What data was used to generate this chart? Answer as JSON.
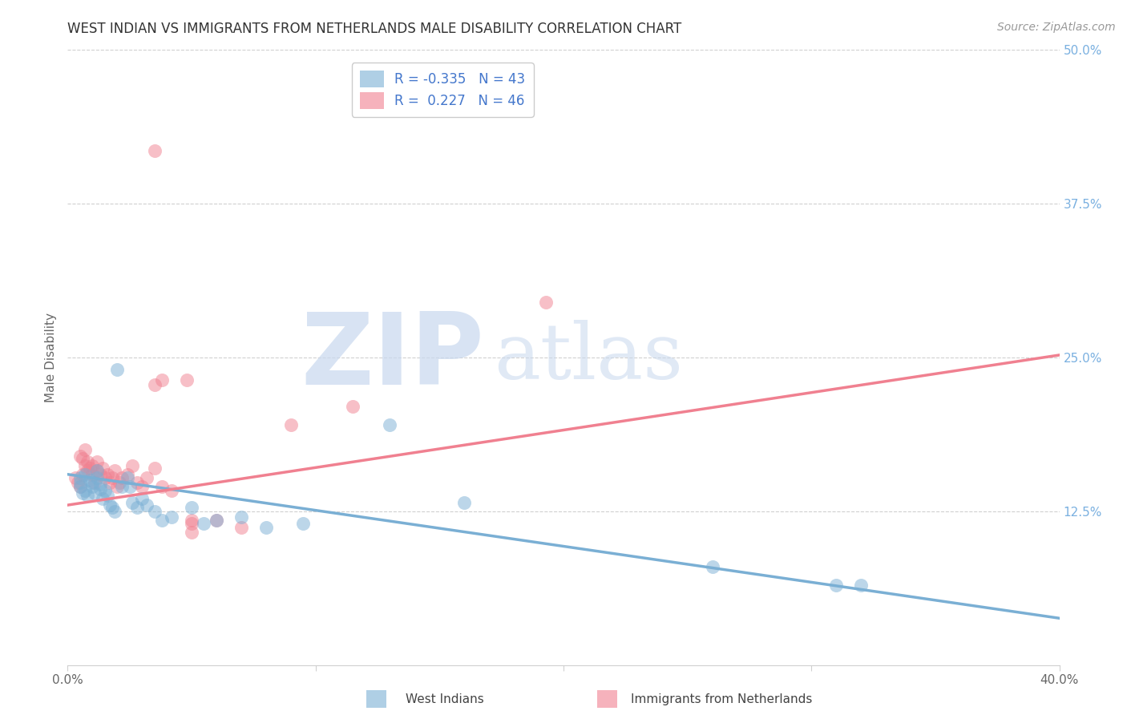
{
  "title": "WEST INDIAN VS IMMIGRANTS FROM NETHERLANDS MALE DISABILITY CORRELATION CHART",
  "source": "Source: ZipAtlas.com",
  "ylabel": "Male Disability",
  "xlim": [
    0.0,
    0.4
  ],
  "ylim": [
    0.0,
    0.5
  ],
  "yticks": [
    0.125,
    0.25,
    0.375,
    0.5
  ],
  "ytick_labels": [
    "12.5%",
    "25.0%",
    "37.5%",
    "50.0%"
  ],
  "xticks": [
    0.0,
    0.1,
    0.2,
    0.3,
    0.4
  ],
  "xtick_labels": [
    "0.0%",
    "",
    "",
    "",
    "40.0%"
  ],
  "watermark_zip": "ZIP",
  "watermark_atlas": "atlas",
  "series1_color": "#7aafd4",
  "series2_color": "#f08090",
  "series1_name": "West Indians",
  "series2_name": "Immigrants from Netherlands",
  "background_color": "#ffffff",
  "grid_color": "#d0d0d0",
  "title_color": "#333333",
  "right_tick_color": "#7ab0e0",
  "legend_text_color": "#4477cc",
  "legend_R1": "R = -0.335",
  "legend_N1": "N = 43",
  "legend_R2": "R =  0.227",
  "legend_N2": "N = 46",
  "blue_line_x0": 0.0,
  "blue_line_y0": 0.155,
  "blue_line_x1": 0.4,
  "blue_line_y1": 0.038,
  "pink_line_x0": 0.0,
  "pink_line_y0": 0.13,
  "pink_line_x1": 0.4,
  "pink_line_y1": 0.252,
  "seed1": 42,
  "seed2": 99,
  "blue_x": [
    0.005,
    0.005,
    0.005,
    0.006,
    0.007,
    0.007,
    0.008,
    0.009,
    0.01,
    0.01,
    0.011,
    0.012,
    0.012,
    0.013,
    0.013,
    0.014,
    0.015,
    0.016,
    0.017,
    0.018,
    0.019,
    0.02,
    0.022,
    0.024,
    0.025,
    0.026,
    0.028,
    0.03,
    0.032,
    0.035,
    0.038,
    0.042,
    0.05,
    0.055,
    0.06,
    0.07,
    0.08,
    0.095,
    0.13,
    0.16,
    0.26,
    0.31,
    0.32
  ],
  "blue_y": [
    0.145,
    0.148,
    0.152,
    0.14,
    0.142,
    0.155,
    0.138,
    0.15,
    0.145,
    0.148,
    0.14,
    0.152,
    0.158,
    0.143,
    0.147,
    0.135,
    0.142,
    0.138,
    0.13,
    0.128,
    0.125,
    0.24,
    0.145,
    0.152,
    0.145,
    0.132,
    0.128,
    0.135,
    0.13,
    0.125,
    0.118,
    0.12,
    0.128,
    0.115,
    0.118,
    0.12,
    0.112,
    0.115,
    0.195,
    0.132,
    0.08,
    0.065,
    0.065
  ],
  "pink_x": [
    0.003,
    0.004,
    0.005,
    0.005,
    0.006,
    0.006,
    0.007,
    0.007,
    0.008,
    0.008,
    0.009,
    0.01,
    0.01,
    0.011,
    0.012,
    0.012,
    0.013,
    0.014,
    0.015,
    0.016,
    0.017,
    0.018,
    0.019,
    0.02,
    0.021,
    0.022,
    0.024,
    0.026,
    0.028,
    0.03,
    0.032,
    0.035,
    0.038,
    0.042,
    0.05,
    0.035,
    0.038,
    0.048,
    0.05,
    0.05,
    0.06,
    0.07,
    0.09,
    0.115,
    0.035,
    0.193
  ],
  "pink_y": [
    0.152,
    0.148,
    0.145,
    0.17,
    0.168,
    0.155,
    0.175,
    0.162,
    0.158,
    0.165,
    0.16,
    0.155,
    0.162,
    0.148,
    0.158,
    0.165,
    0.155,
    0.16,
    0.152,
    0.155,
    0.148,
    0.152,
    0.158,
    0.145,
    0.148,
    0.152,
    0.155,
    0.162,
    0.148,
    0.145,
    0.152,
    0.16,
    0.145,
    0.142,
    0.115,
    0.228,
    0.232,
    0.232,
    0.118,
    0.108,
    0.118,
    0.112,
    0.195,
    0.21,
    0.418,
    0.295
  ]
}
